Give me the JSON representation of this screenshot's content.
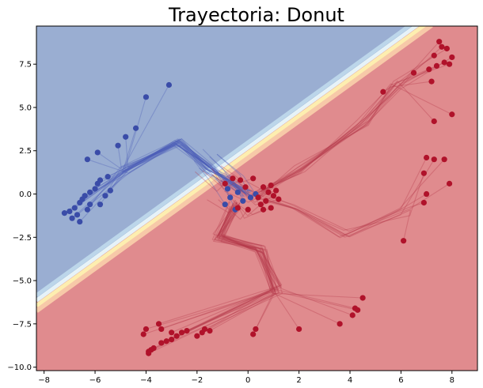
{
  "chart_data": {
    "type": "scatter",
    "title": "Trayectoria: Donut",
    "xlabel": "",
    "ylabel": "",
    "xlim": [
      -8.3,
      9.0
    ],
    "ylim": [
      -10.2,
      9.7
    ],
    "x_ticks": [
      -8,
      -6,
      -4,
      -2,
      0,
      2,
      4,
      6,
      8
    ],
    "y_ticks": [
      -10.0,
      -7.5,
      -5.0,
      -2.5,
      0.0,
      2.5,
      5.0,
      7.5
    ],
    "x_tick_labels": [
      "−8",
      "−6",
      "−4",
      "−2",
      "0",
      "2",
      "4",
      "6",
      "8"
    ],
    "y_tick_labels": [
      "−10.0",
      "−7.5",
      "−5.0",
      "−2.5",
      "0.0",
      "2.5",
      "5.0",
      "7.5"
    ],
    "grid": false,
    "decision_boundary": {
      "description": "Linear boundary from (-8.3,-6.2) to (6.6,9.7); blue class above-left, red class below-right",
      "colors": {
        "blue_region": "#9aaed2",
        "red_region": "#e08b8e"
      }
    },
    "series": [
      {
        "class": "blue",
        "color": "#3a4ca8",
        "end_points": [
          {
            "x": -7.0,
            "y": -1.0
          },
          {
            "x": -6.8,
            "y": -0.8
          },
          {
            "x": -6.6,
            "y": -0.5
          },
          {
            "x": -6.5,
            "y": -0.3
          },
          {
            "x": -6.4,
            "y": -0.1
          },
          {
            "x": -6.2,
            "y": 0.1
          },
          {
            "x": -6.0,
            "y": 0.3
          },
          {
            "x": -5.9,
            "y": 0.6
          },
          {
            "x": -6.7,
            "y": -1.2
          },
          {
            "x": -6.9,
            "y": -1.4
          },
          {
            "x": -6.6,
            "y": -1.6
          },
          {
            "x": -6.3,
            "y": -0.9
          },
          {
            "x": -5.8,
            "y": -0.6
          },
          {
            "x": -5.6,
            "y": -0.1
          },
          {
            "x": -5.4,
            "y": 0.2
          },
          {
            "x": -5.8,
            "y": 0.8
          },
          {
            "x": -5.5,
            "y": 1.0
          },
          {
            "x": -5.9,
            "y": 2.4
          },
          {
            "x": -6.3,
            "y": 2.0
          },
          {
            "x": -5.1,
            "y": 2.8
          },
          {
            "x": -4.8,
            "y": 3.3
          },
          {
            "x": -4.4,
            "y": 3.8
          },
          {
            "x": -4.0,
            "y": 5.6
          },
          {
            "x": -3.1,
            "y": 6.3
          },
          {
            "x": -7.2,
            "y": -1.1
          },
          {
            "x": -6.2,
            "y": -0.6
          },
          {
            "x": -0.9,
            "y": -0.6
          },
          {
            "x": -0.7,
            "y": -0.2
          },
          {
            "x": -0.4,
            "y": 0.1
          },
          {
            "x": -0.2,
            "y": -0.4
          },
          {
            "x": -0.5,
            "y": -0.9
          },
          {
            "x": -0.8,
            "y": 0.3
          },
          {
            "x": 0.1,
            "y": -0.2
          },
          {
            "x": 0.3,
            "y": 0.0
          }
        ]
      },
      {
        "class": "red",
        "color": "#b0122a",
        "end_points": [
          {
            "x": 7.5,
            "y": 8.8
          },
          {
            "x": 7.6,
            "y": 8.5
          },
          {
            "x": 7.8,
            "y": 8.4
          },
          {
            "x": 7.3,
            "y": 8.0
          },
          {
            "x": 7.7,
            "y": 7.6
          },
          {
            "x": 7.4,
            "y": 7.4
          },
          {
            "x": 7.9,
            "y": 7.5
          },
          {
            "x": 8.0,
            "y": 7.9
          },
          {
            "x": 7.1,
            "y": 7.2
          },
          {
            "x": 6.5,
            "y": 7.0
          },
          {
            "x": 7.2,
            "y": 6.5
          },
          {
            "x": 5.3,
            "y": 5.9
          },
          {
            "x": 8.0,
            "y": 4.6
          },
          {
            "x": 7.3,
            "y": 4.2
          },
          {
            "x": 7.0,
            "y": 2.1
          },
          {
            "x": 7.3,
            "y": 2.0
          },
          {
            "x": 7.7,
            "y": 2.0
          },
          {
            "x": 6.9,
            "y": 1.2
          },
          {
            "x": 7.9,
            "y": 0.6
          },
          {
            "x": 7.0,
            "y": 0.0
          },
          {
            "x": 6.9,
            "y": -0.5
          },
          {
            "x": 6.1,
            "y": -2.7
          },
          {
            "x": 4.5,
            "y": -6.0
          },
          {
            "x": 4.2,
            "y": -6.6
          },
          {
            "x": 4.3,
            "y": -6.7
          },
          {
            "x": 4.1,
            "y": -7.0
          },
          {
            "x": 3.6,
            "y": -7.5
          },
          {
            "x": 2.0,
            "y": -7.8
          },
          {
            "x": 0.3,
            "y": -7.8
          },
          {
            "x": 0.2,
            "y": -8.1
          },
          {
            "x": -1.5,
            "y": -7.9
          },
          {
            "x": -1.7,
            "y": -7.8
          },
          {
            "x": -1.8,
            "y": -8.0
          },
          {
            "x": -2.0,
            "y": -8.2
          },
          {
            "x": -2.4,
            "y": -7.9
          },
          {
            "x": -2.6,
            "y": -8.0
          },
          {
            "x": -2.8,
            "y": -8.2
          },
          {
            "x": -3.0,
            "y": -8.0
          },
          {
            "x": -3.4,
            "y": -7.8
          },
          {
            "x": -3.5,
            "y": -7.5
          },
          {
            "x": -3.4,
            "y": -8.6
          },
          {
            "x": -3.2,
            "y": -8.5
          },
          {
            "x": -3.0,
            "y": -8.4
          },
          {
            "x": -3.7,
            "y": -8.9
          },
          {
            "x": -3.9,
            "y": -9.1
          },
          {
            "x": -3.8,
            "y": -9.0
          },
          {
            "x": -4.0,
            "y": -7.8
          },
          {
            "x": -4.1,
            "y": -8.1
          },
          {
            "x": -3.9,
            "y": -9.2
          },
          {
            "x": 0.6,
            "y": 0.4
          },
          {
            "x": 0.8,
            "y": 0.1
          },
          {
            "x": 1.0,
            "y": -0.1
          },
          {
            "x": 0.7,
            "y": -0.4
          },
          {
            "x": 0.5,
            "y": -0.6
          },
          {
            "x": 0.9,
            "y": -0.8
          },
          {
            "x": 1.1,
            "y": 0.2
          },
          {
            "x": 0.4,
            "y": -0.2
          },
          {
            "x": -0.3,
            "y": 0.8
          },
          {
            "x": -0.6,
            "y": 0.9
          },
          {
            "x": -0.9,
            "y": 0.6
          },
          {
            "x": 0.2,
            "y": 0.9
          },
          {
            "x": -0.1,
            "y": 0.4
          },
          {
            "x": 0.0,
            "y": -0.9
          },
          {
            "x": -0.4,
            "y": -0.8
          },
          {
            "x": 0.6,
            "y": -0.9
          },
          {
            "x": 1.2,
            "y": -0.3
          },
          {
            "x": 0.9,
            "y": 0.5
          }
        ]
      }
    ]
  },
  "colors": {
    "blue_region": "#9aaed2",
    "red_region": "#e08b8e",
    "blue_point": "#3a4ca8",
    "red_point": "#b0122a",
    "blue_trail": "#4a5db8",
    "red_trail": "#b43a4a"
  }
}
